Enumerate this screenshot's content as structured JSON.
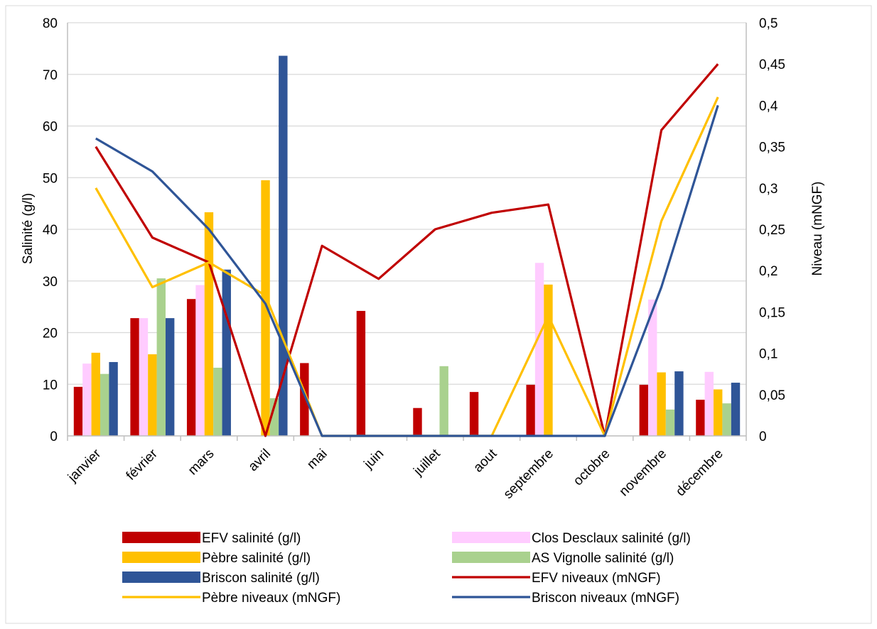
{
  "chart_data": {
    "type": "bar",
    "categories": [
      "janvier",
      "février",
      "mars",
      "avril",
      "mai",
      "juin",
      "juillet",
      "aout",
      "septembre",
      "octobre",
      "novembre",
      "décembre"
    ],
    "ylabel": "Salinité (g/l)",
    "y2label": "Niveau (mNGF)",
    "ylim": [
      0,
      80
    ],
    "y2lim": [
      0,
      0.5
    ],
    "y_ticks": [
      "0",
      "10",
      "20",
      "30",
      "40",
      "50",
      "60",
      "70",
      "80"
    ],
    "y2_ticks": [
      "0",
      "0,05",
      "0,1",
      "0,15",
      "0,2",
      "0,25",
      "0,3",
      "0,35",
      "0,4",
      "0,45",
      "0,5"
    ],
    "grid": true,
    "legend_position": "bottom",
    "bar_series": [
      {
        "name": "EFV salinité (g/l)",
        "color": "#c00000",
        "values": [
          9.5,
          22.8,
          26.5,
          0,
          14.1,
          24.2,
          5.4,
          8.5,
          9.9,
          0,
          9.9,
          7.0
        ]
      },
      {
        "name": "Clos Desclaux salinité (g/l)",
        "color": "#ffccff",
        "values": [
          14.0,
          22.8,
          29.2,
          0,
          0,
          0,
          0,
          0,
          33.5,
          0,
          26.4,
          12.4
        ]
      },
      {
        "name": "Pèbre salinité (g/l)",
        "color": "#ffc000",
        "values": [
          16.1,
          15.8,
          43.3,
          49.5,
          0,
          0,
          0,
          0,
          29.3,
          0,
          12.3,
          9.0
        ]
      },
      {
        "name": "AS Vignolle salinité (g/l)",
        "color": "#a9d18e",
        "values": [
          12.0,
          30.5,
          13.2,
          7.3,
          0,
          0,
          13.5,
          0,
          0,
          0,
          5.1,
          6.3
        ]
      },
      {
        "name": "Briscon salinité (g/l)",
        "color": "#2f5597",
        "values": [
          14.3,
          22.8,
          32.2,
          73.6,
          0,
          0,
          0,
          0,
          0,
          0,
          12.5,
          10.3
        ]
      }
    ],
    "line_series": [
      {
        "name": "EFV niveaux (mNGF)",
        "color": "#c00000",
        "values": [
          0.35,
          0.24,
          0.21,
          0.0,
          0.23,
          0.19,
          0.25,
          0.27,
          0.28,
          0.0,
          0.37,
          0.45
        ]
      },
      {
        "name": "Pèbre niveaux (mNGF)",
        "color": "#ffc000",
        "values": [
          0.3,
          0.18,
          0.21,
          0.17,
          0.0,
          0.0,
          0.0,
          0.0,
          0.145,
          0.0,
          0.26,
          0.41
        ]
      },
      {
        "name": "Briscon niveaux (mNGF)",
        "color": "#2f5597",
        "values": [
          0.36,
          0.32,
          0.25,
          0.16,
          0.0,
          0.0,
          0.0,
          0.0,
          0.0,
          0.0,
          0.18,
          0.4
        ]
      }
    ],
    "legend_entries": [
      {
        "name": "EFV salinité (g/l)",
        "kind": "bar",
        "color": "#c00000"
      },
      {
        "name": "Clos Desclaux salinité (g/l)",
        "kind": "bar",
        "color": "#ffccff"
      },
      {
        "name": "Pèbre salinité (g/l)",
        "kind": "bar",
        "color": "#ffc000"
      },
      {
        "name": "AS Vignolle salinité (g/l)",
        "kind": "bar",
        "color": "#a9d18e"
      },
      {
        "name": "Briscon salinité (g/l)",
        "kind": "bar",
        "color": "#2f5597"
      },
      {
        "name": "EFV niveaux (mNGF)",
        "kind": "line",
        "color": "#c00000"
      },
      {
        "name": "Pèbre niveaux (mNGF)",
        "kind": "line",
        "color": "#ffc000"
      },
      {
        "name": "Briscon niveaux (mNGF)",
        "kind": "line",
        "color": "#2f5597"
      }
    ]
  }
}
